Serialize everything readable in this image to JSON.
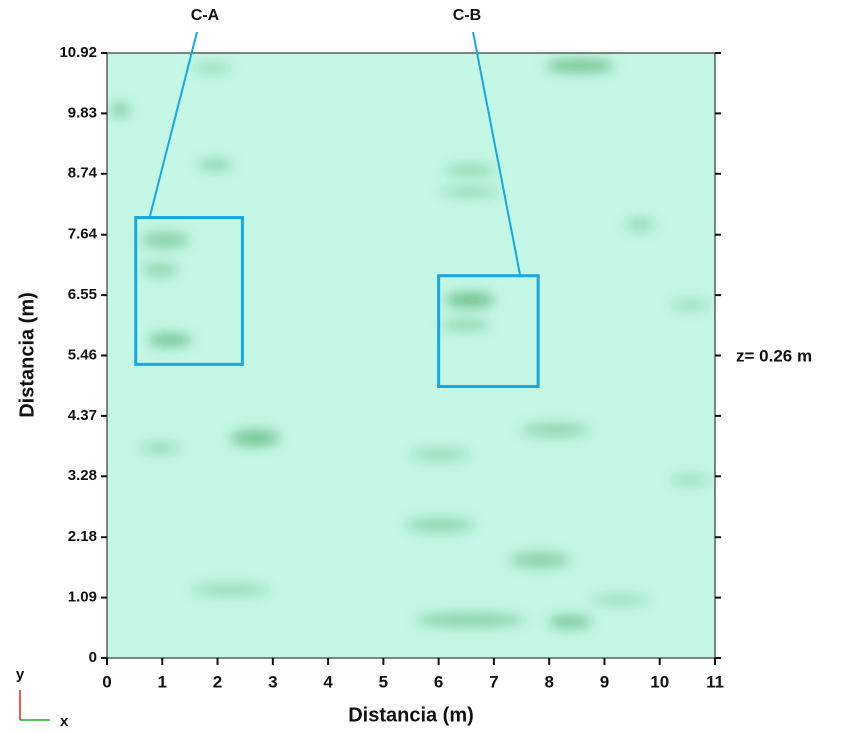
{
  "chart_data": {
    "type": "image",
    "xlabel": "Distancia (m)",
    "ylabel": "Distancia (m)",
    "xlim": [
      0,
      11
    ],
    "ylim": [
      0,
      10.92
    ],
    "xticks": [
      0,
      1,
      2,
      3,
      4,
      5,
      6,
      7,
      8,
      9,
      10,
      11
    ],
    "yticks": [
      0,
      1.09,
      2.18,
      3.28,
      4.37,
      5.46,
      6.55,
      7.64,
      8.74,
      9.83,
      10.92
    ],
    "background": "#c5f7e6",
    "box_color": "#1aa7e0",
    "annotations": [
      {
        "label": "C-A",
        "x": [
          0.52,
          2.45
        ],
        "y": [
          5.3,
          7.95
        ]
      },
      {
        "label": "C-B",
        "x": [
          6.0,
          7.8
        ],
        "y": [
          4.9,
          6.9
        ]
      }
    ],
    "side_label": "z= 0.26 m",
    "axis_x": "x",
    "axis_y": "y"
  }
}
